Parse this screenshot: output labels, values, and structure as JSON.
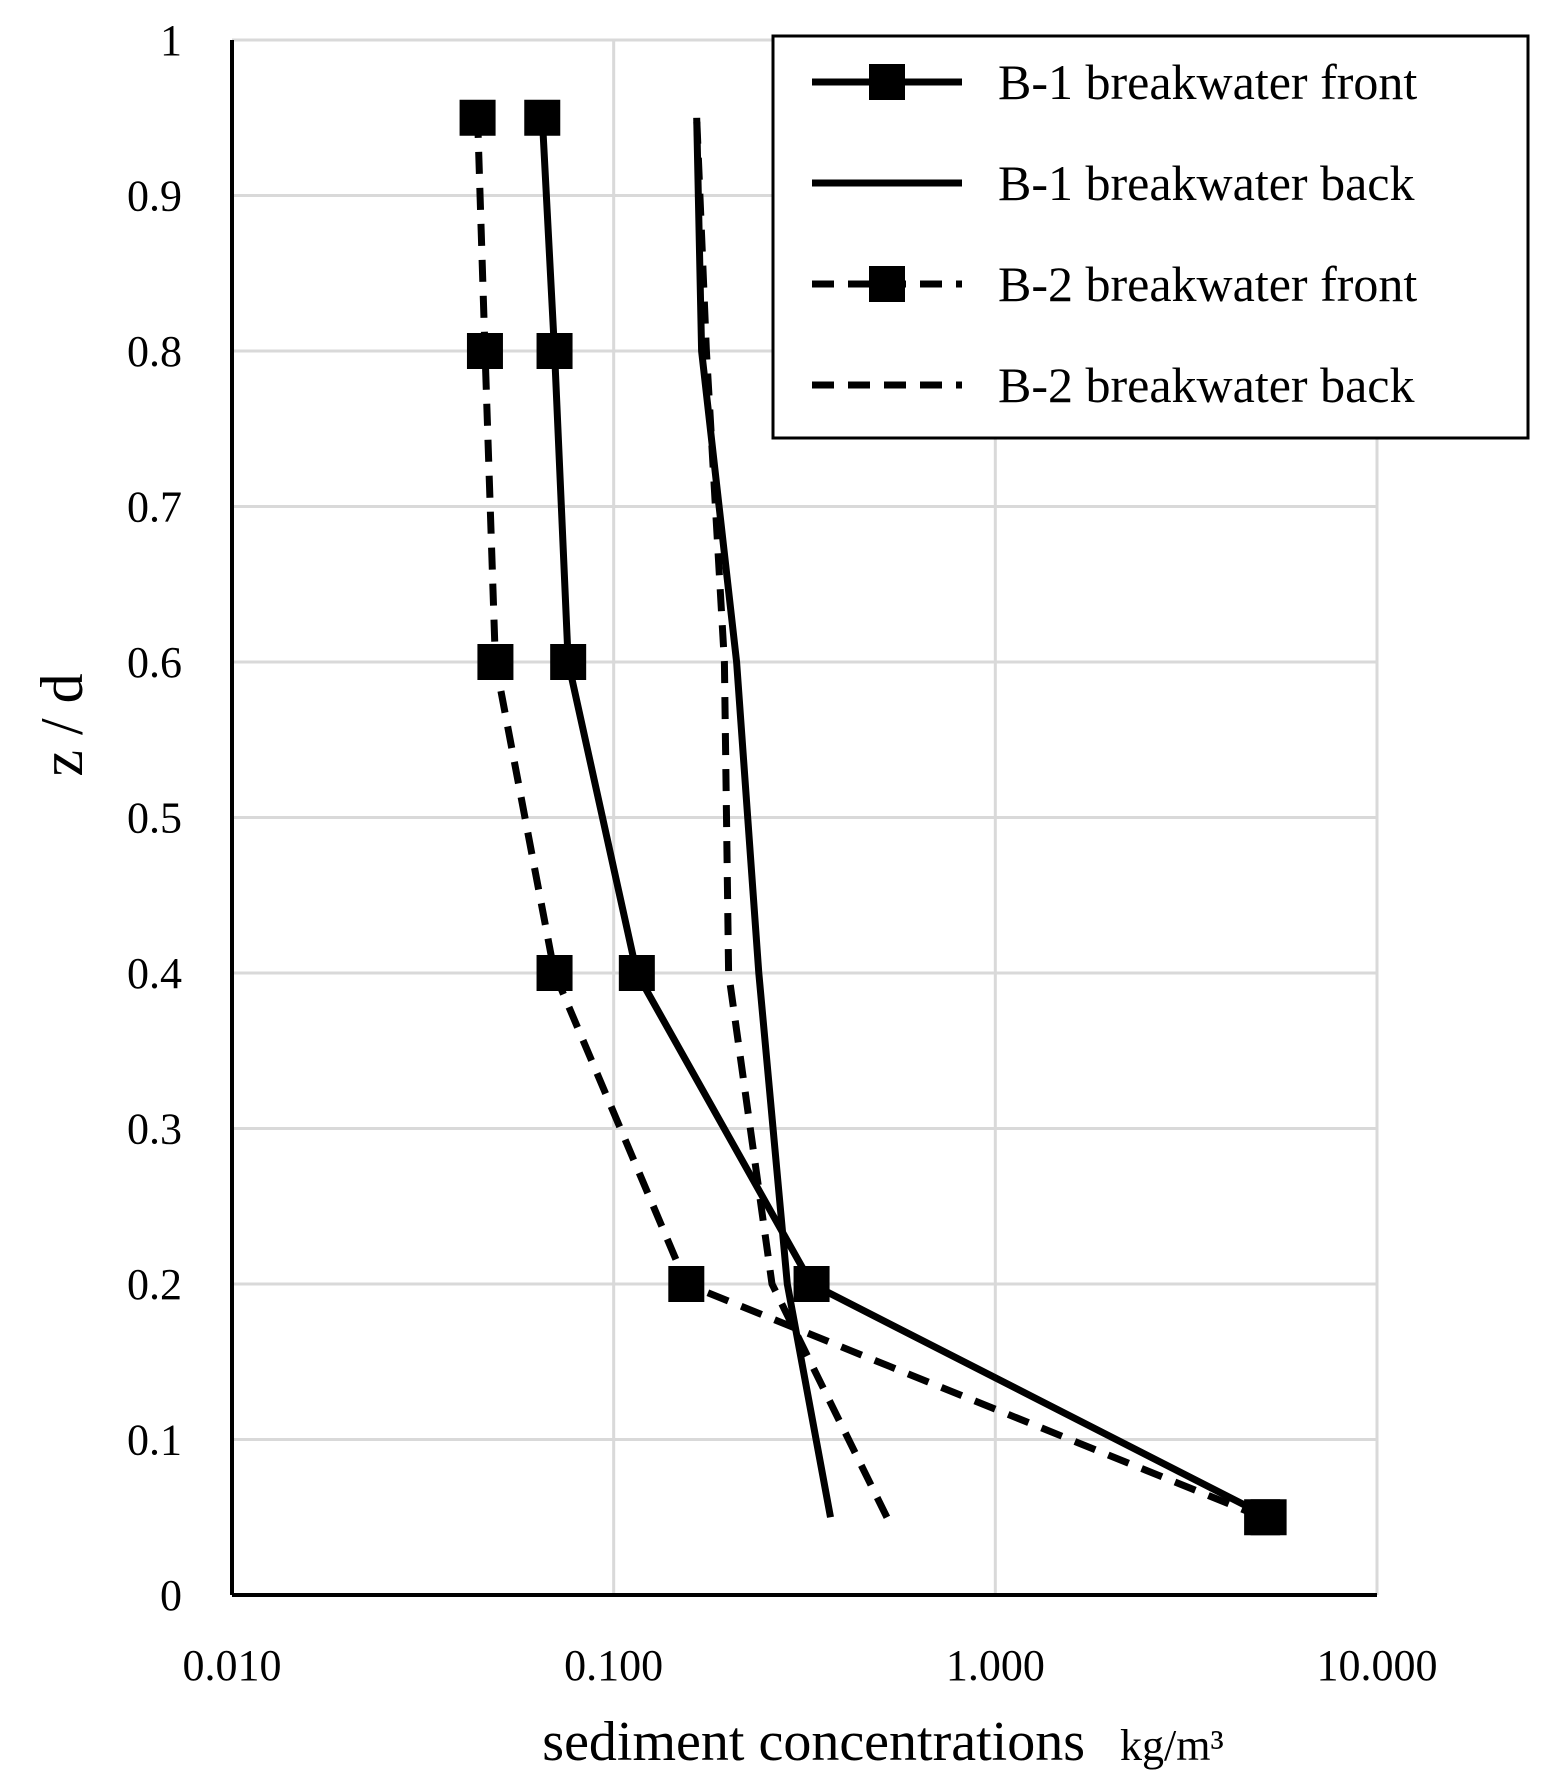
{
  "chart_data": {
    "type": "line",
    "title": "",
    "xlabel": "sediment concentrations",
    "xlabel_unit": "kg/m³",
    "ylabel": "z / d",
    "xscale": "log",
    "xlim": [
      0.01,
      10
    ],
    "ylim": [
      0,
      1
    ],
    "x_tick_labels": [
      "0.010",
      "0.100",
      "1.000",
      "10.000"
    ],
    "y_tick_labels": [
      "0",
      "0.1",
      "0.2",
      "0.3",
      "0.4",
      "0.5",
      "0.6",
      "0.7",
      "0.8",
      "0.9",
      "1"
    ],
    "grid": true,
    "legend_position": "top-right",
    "series": [
      {
        "name": "B-1 breakwater front",
        "line_style": "solid",
        "marker": "square",
        "color": "#000000",
        "x": [
          5.2,
          0.33,
          0.115,
          0.076,
          0.07,
          0.065
        ],
        "y": [
          0.05,
          0.2,
          0.4,
          0.6,
          0.8,
          0.95
        ]
      },
      {
        "name": "B-1 breakwater back",
        "line_style": "solid",
        "marker": "none",
        "color": "#000000",
        "x": [
          0.37,
          0.285,
          0.24,
          0.21,
          0.17,
          0.165
        ],
        "y": [
          0.05,
          0.2,
          0.4,
          0.6,
          0.8,
          0.95
        ]
      },
      {
        "name": "B-2 breakwater front",
        "line_style": "dashed",
        "marker": "square",
        "color": "#000000",
        "x": [
          5.0,
          0.155,
          0.07,
          0.049,
          0.046,
          0.044
        ],
        "y": [
          0.05,
          0.2,
          0.4,
          0.6,
          0.8,
          0.95
        ]
      },
      {
        "name": "B-2 breakwater back",
        "line_style": "dashed",
        "marker": "none",
        "color": "#000000",
        "x": [
          0.52,
          0.26,
          0.2,
          0.195,
          0.175,
          0.165
        ],
        "y": [
          0.05,
          0.2,
          0.4,
          0.6,
          0.8,
          0.95
        ]
      }
    ]
  }
}
